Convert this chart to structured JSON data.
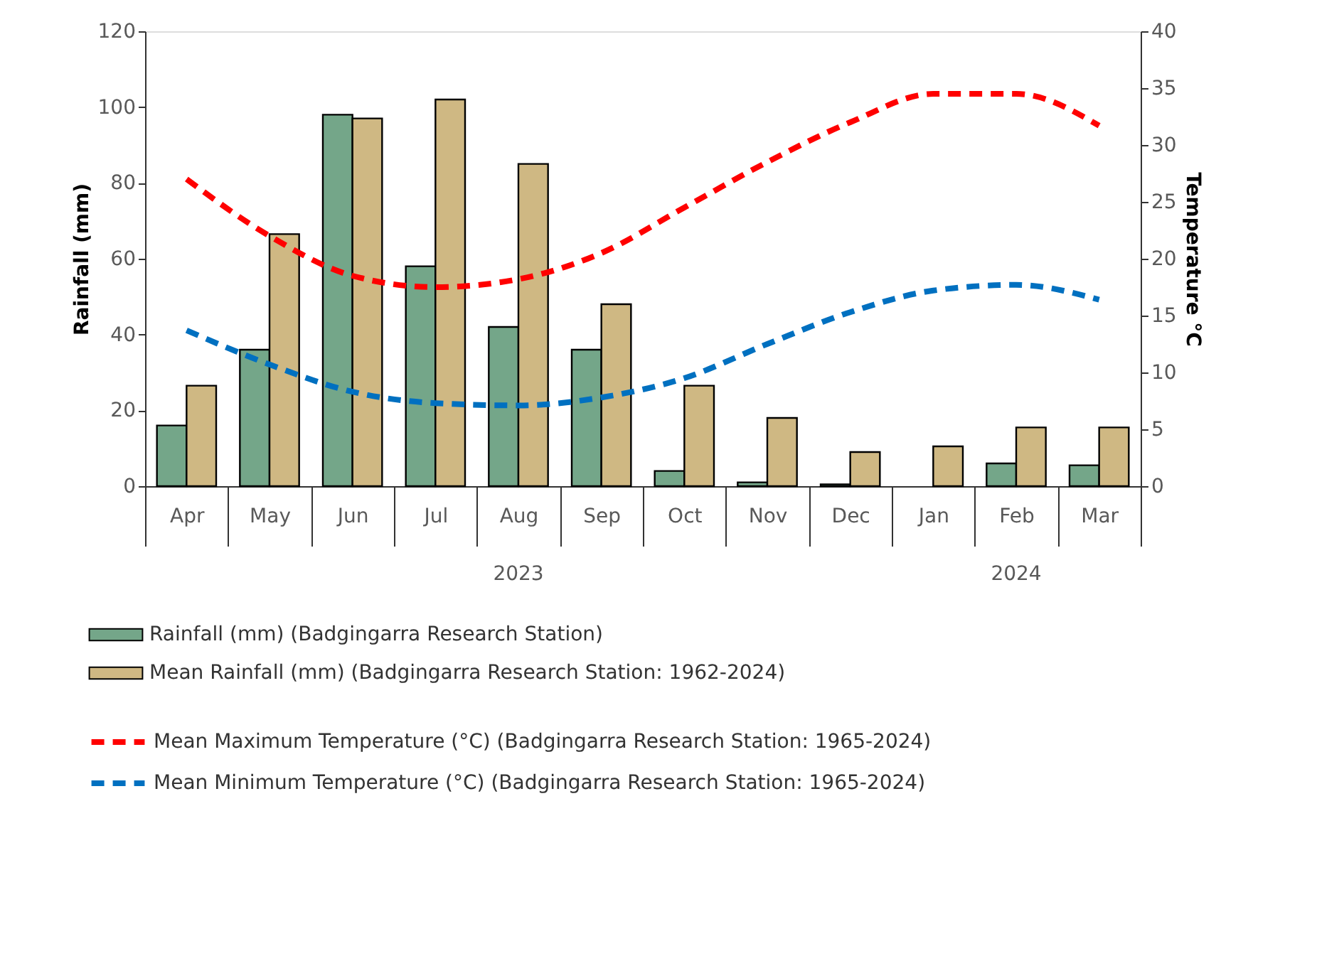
{
  "chart_data": {
    "type": "bar",
    "categories": [
      "Apr",
      "May",
      "Jun",
      "Jul",
      "Aug",
      "Sep",
      "Oct",
      "Nov",
      "Dec",
      "Jan",
      "Feb",
      "Mar"
    ],
    "ylabel": "Rainfall (mm)",
    "y2label": "Temperature °C",
    "ylim": [
      0,
      120
    ],
    "yticks": [
      0,
      20,
      40,
      60,
      80,
      100,
      120
    ],
    "y2lim": [
      0,
      40
    ],
    "y2ticks": [
      0,
      5,
      10,
      15,
      20,
      25,
      30,
      35,
      40
    ],
    "grid": false,
    "legend": "bottom",
    "annotations": [
      "2023",
      "2024"
    ],
    "series": [
      {
        "name": "Rainfall (mm) (Badgingarra Research Station)",
        "color": "#74a689",
        "values": [
          16,
          36,
          98,
          58,
          42,
          36,
          4,
          1,
          0.5,
          null,
          6,
          5.5
        ]
      },
      {
        "name": "Mean Rainfall (mm) (Badgingarra Research Station: 1962-2024)",
        "color": "#cfb883",
        "values": [
          26.5,
          66.5,
          97,
          102,
          85,
          48,
          26.5,
          18,
          9,
          10.5,
          15.5,
          15.5
        ]
      },
      {
        "name": "Mean Maximum Temperature (°C) (Badgingarra Research Station: 1965-2024)",
        "type": "line",
        "axis": "y2",
        "line_style": "dashed",
        "color": "#ff0000",
        "values": [
          27,
          22,
          18.5,
          17.5,
          18.2,
          20.5,
          24.5,
          28.5,
          32,
          34.5,
          34.5,
          31.7
        ]
      },
      {
        "name": "Mean Minimum Temperature (°C) (Badgingarra Research Station: 1965-2024)",
        "type": "line",
        "axis": "y2",
        "line_style": "dashed",
        "color": "#0070c0",
        "values": [
          13.7,
          10.7,
          8.3,
          7.3,
          7.1,
          7.8,
          9.5,
          12.5,
          15.3,
          17.2,
          17.7,
          16.4
        ]
      }
    ]
  }
}
